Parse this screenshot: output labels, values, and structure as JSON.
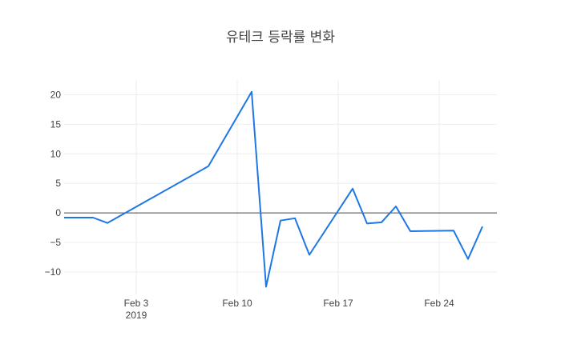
{
  "chart_data": {
    "type": "line",
    "title": "유테크 등락률 변화",
    "xlabel": "",
    "ylabel": "",
    "x_range": [
      "2019-01-29",
      "2019-02-28"
    ],
    "ylim": [
      -13.8,
      22.5
    ],
    "grid": true,
    "zeroline": true,
    "line_color": "#1f77e4",
    "x_ticks": [
      {
        "date": "2019-02-03",
        "label": "Feb 3",
        "sublabel": "2019"
      },
      {
        "date": "2019-02-10",
        "label": "Feb 10",
        "sublabel": ""
      },
      {
        "date": "2019-02-17",
        "label": "Feb 17",
        "sublabel": ""
      },
      {
        "date": "2019-02-24",
        "label": "Feb 24",
        "sublabel": ""
      }
    ],
    "y_ticks": [
      {
        "value": 20,
        "label": "20"
      },
      {
        "value": 15,
        "label": "15"
      },
      {
        "value": 10,
        "label": "10"
      },
      {
        "value": 5,
        "label": "5"
      },
      {
        "value": 0,
        "label": "0"
      },
      {
        "value": -5,
        "label": "−5"
      },
      {
        "value": -10,
        "label": "−10"
      }
    ],
    "x": [
      "2019-01-29",
      "2019-01-31",
      "2019-02-01",
      "2019-02-08",
      "2019-02-11",
      "2019-02-12",
      "2019-02-13",
      "2019-02-14",
      "2019-02-15",
      "2019-02-18",
      "2019-02-19",
      "2019-02-20",
      "2019-02-21",
      "2019-02-22",
      "2019-02-25",
      "2019-02-26",
      "2019-02-27"
    ],
    "y": [
      -0.8,
      -0.8,
      -1.7,
      7.9,
      20.5,
      -12.5,
      -1.3,
      -0.9,
      -7.1,
      4.1,
      -1.8,
      -1.6,
      1.1,
      -3.1,
      -3.0,
      -7.8,
      -2.3
    ]
  }
}
